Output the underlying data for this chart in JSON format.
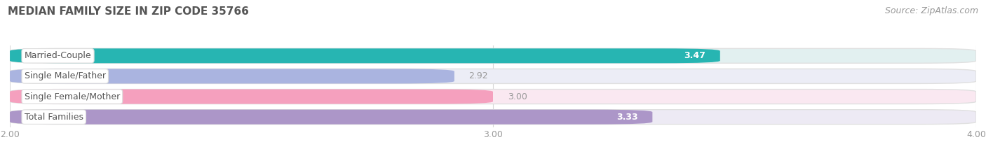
{
  "title": "MEDIAN FAMILY SIZE IN ZIP CODE 35766",
  "source": "Source: ZipAtlas.com",
  "categories": [
    "Married-Couple",
    "Single Male/Father",
    "Single Female/Mother",
    "Total Families"
  ],
  "values": [
    3.47,
    2.92,
    3.0,
    3.33
  ],
  "bar_colors": [
    "#27b5b2",
    "#aab4e0",
    "#f5a0be",
    "#ac96c8"
  ],
  "bar_bg_colors": [
    "#e2f0f0",
    "#ecedf6",
    "#fae8f1",
    "#edeaf4"
  ],
  "value_inside": [
    true,
    false,
    false,
    true
  ],
  "xlim": [
    2.0,
    4.0
  ],
  "xticks": [
    2.0,
    3.0,
    4.0
  ],
  "xtick_labels": [
    "2.00",
    "3.00",
    "4.00"
  ],
  "title_fontsize": 11,
  "source_fontsize": 9,
  "label_fontsize": 9,
  "tick_fontsize": 9,
  "bar_height": 0.72,
  "background_color": "#ffffff",
  "grid_color": "#d8d8d8",
  "label_text_color": "#555555",
  "value_color_inside": "#ffffff",
  "value_color_outside": "#999999"
}
